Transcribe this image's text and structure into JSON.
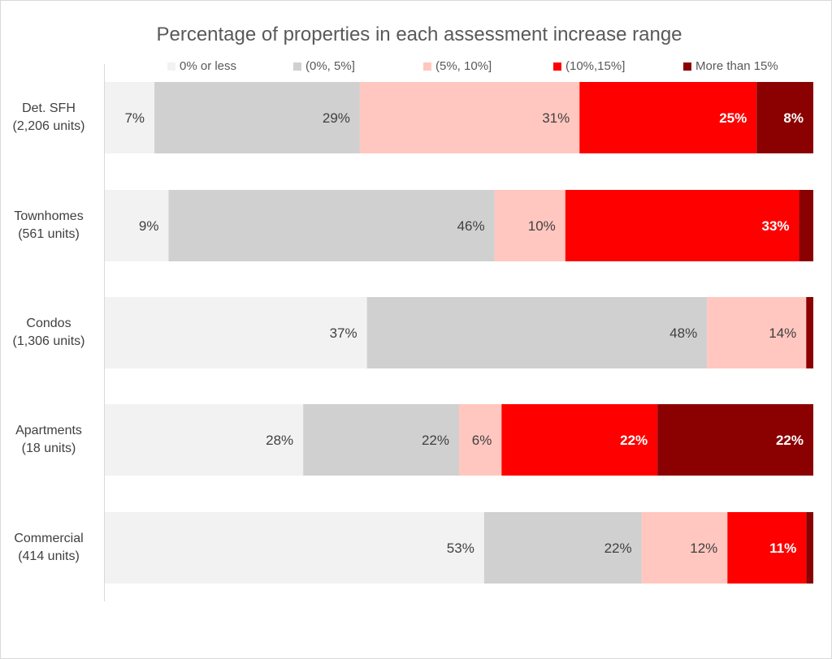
{
  "chart_data": {
    "type": "bar",
    "orientation": "horizontal",
    "stacked": "100%",
    "title": "Percentage of properties in each assessment increase range",
    "xlabel": "",
    "ylabel": "",
    "xlim": [
      0,
      100
    ],
    "grid": false,
    "legend_position": "top",
    "categories": [
      {
        "name": "Det. SFH",
        "units": "(2,206 units)"
      },
      {
        "name": "Townhomes",
        "units": "(561 units)"
      },
      {
        "name": "Condos",
        "units": "(1,306 units)"
      },
      {
        "name": "Apartments",
        "units": "(18 units)"
      },
      {
        "name": "Commercial",
        "units": "(414 units)"
      }
    ],
    "series": [
      {
        "name": "0% or less",
        "color": "#f2f2f2",
        "values": [
          7,
          9,
          37,
          28,
          53
        ],
        "labels": [
          "7%",
          "9%",
          "37%",
          "28%",
          "53%"
        ],
        "label_color": "#404040"
      },
      {
        "name": "(0%, 5%]",
        "color": "#d0d0d0",
        "values": [
          29,
          46,
          48,
          22,
          22
        ],
        "labels": [
          "29%",
          "46%",
          "48%",
          "22%",
          "22%"
        ],
        "label_color": "#404040"
      },
      {
        "name": "(5%, 10%]",
        "color": "#ffc7bf",
        "values": [
          31,
          10,
          14,
          6,
          12
        ],
        "labels": [
          "31%",
          "10%",
          "14%",
          "6%",
          "12%"
        ],
        "label_color": "#404040"
      },
      {
        "name": "(10%,15%]",
        "color": "#ff0000",
        "values": [
          25,
          33,
          0,
          22,
          11
        ],
        "labels": [
          "25%",
          "33%",
          "",
          "22%",
          "11%"
        ],
        "label_color": "#ffffff"
      },
      {
        "name": "More than 15%",
        "color": "#8b0000",
        "values": [
          8,
          2,
          1,
          22,
          1
        ],
        "labels": [
          "8%",
          "",
          "",
          "22%",
          ""
        ],
        "label_color": "#ffffff"
      }
    ]
  }
}
